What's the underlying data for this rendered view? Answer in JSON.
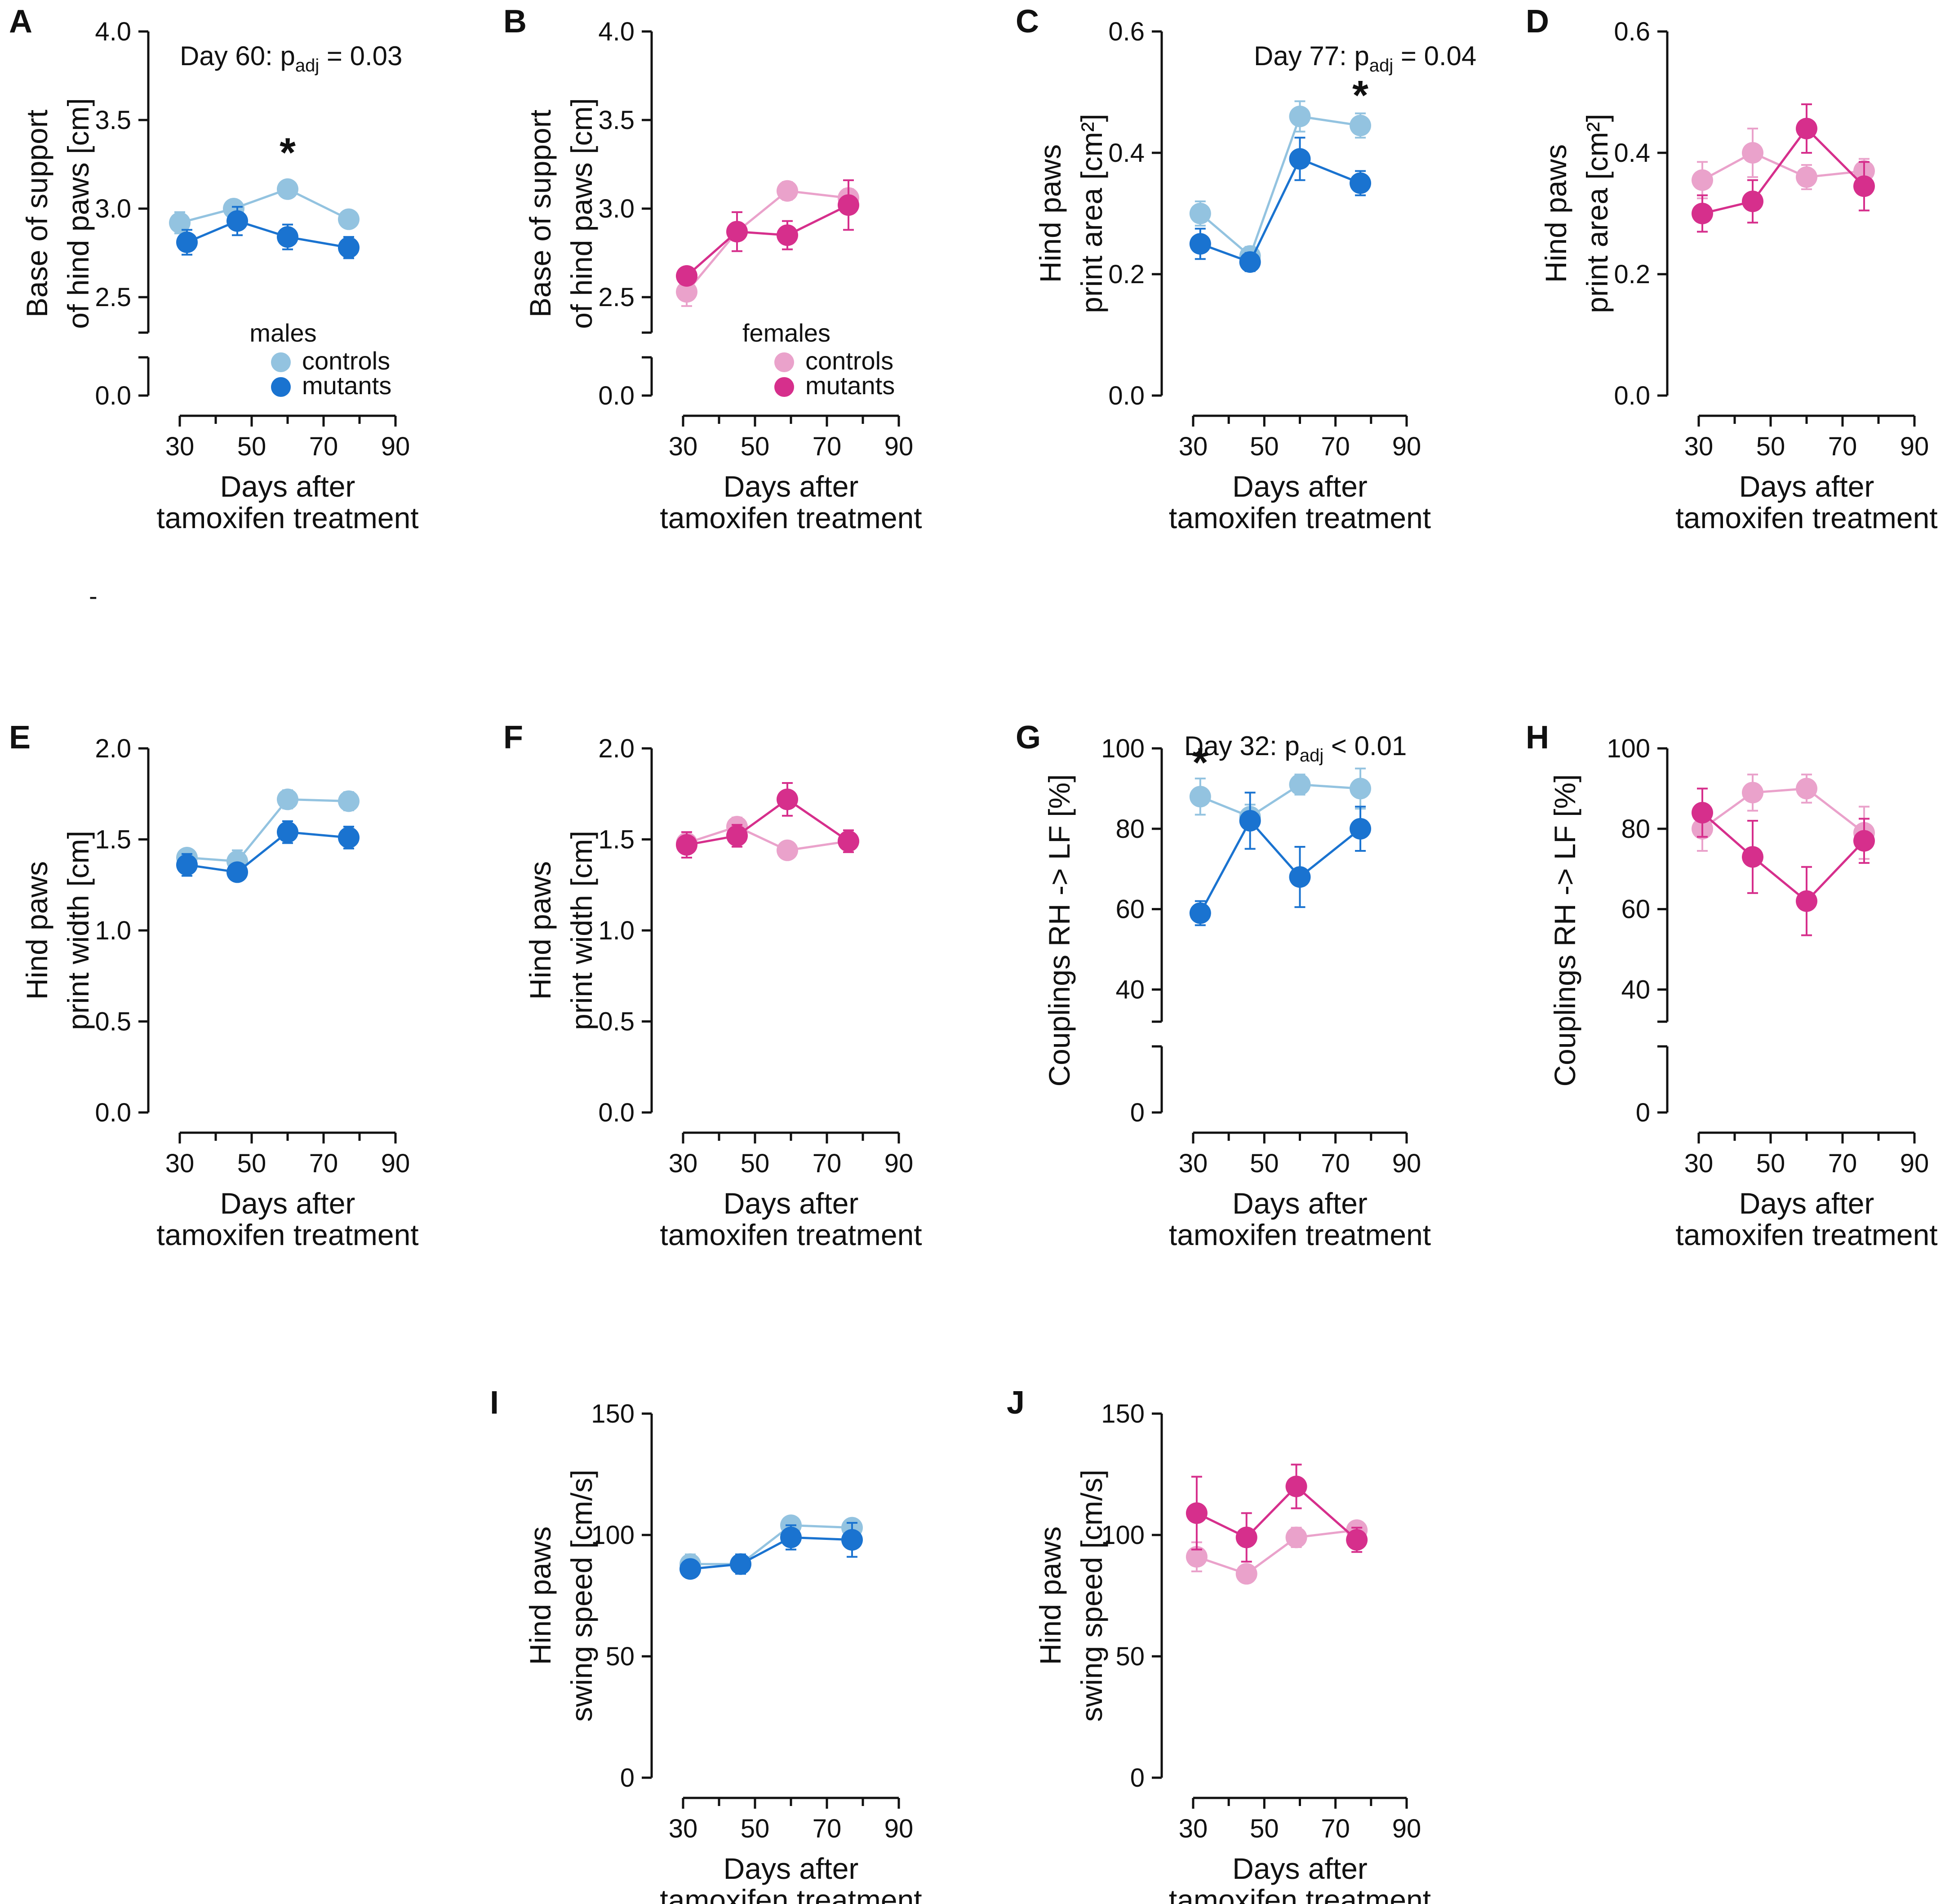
{
  "figure": {
    "xlabel_line1": "Days after",
    "xlabel_line2": "tamoxifen treatment",
    "stray_mark": "-"
  },
  "colors": {
    "male_control": "#93c3e0",
    "male_mutant": "#1a73d0",
    "female_control": "#eaa2cb",
    "female_mutant": "#d62f8c",
    "axis": "#111111"
  },
  "chart_data": [
    {
      "panel": "A",
      "type": "line",
      "title": "",
      "ylabel_lines": [
        "Base of support",
        "of hind paws [cm]"
      ],
      "ylim": [
        2.3,
        4.0
      ],
      "break_zero": true,
      "yticks": [
        2.5,
        3.0,
        3.5,
        4.0
      ],
      "ytick_labels": [
        "2.5",
        "3.0",
        "3.5",
        "4.0"
      ],
      "xlim": [
        30,
        90
      ],
      "xticks": [
        30,
        50,
        70,
        90
      ],
      "xtick_labels": [
        "30",
        "50",
        "70",
        "90"
      ],
      "annotation": {
        "prefix": "Day 60: p",
        "sub": "adj",
        "suffix": " = 0.03"
      },
      "stars": [
        {
          "x": 60,
          "y": 3.35
        }
      ],
      "legend": {
        "title": "males",
        "labels": [
          "controls",
          "mutants"
        ]
      },
      "series": [
        {
          "name": "controls",
          "color_key": "male_control",
          "x": [
            30,
            45,
            60,
            77
          ],
          "values": [
            2.92,
            3.0,
            3.11,
            2.94
          ],
          "err": [
            0.06,
            0.04,
            0.03,
            0.03
          ]
        },
        {
          "name": "mutants",
          "color_key": "male_mutant",
          "x": [
            32,
            46,
            60,
            77
          ],
          "values": [
            2.81,
            2.93,
            2.84,
            2.78
          ],
          "err": [
            0.07,
            0.08,
            0.07,
            0.06
          ]
        }
      ]
    },
    {
      "panel": "B",
      "type": "line",
      "title": "",
      "ylabel_lines": [
        "Base of support",
        "of hind paws [cm]"
      ],
      "ylim": [
        2.3,
        4.0
      ],
      "break_zero": true,
      "yticks": [
        2.5,
        3.0,
        3.5,
        4.0
      ],
      "ytick_labels": [
        "2.5",
        "3.0",
        "3.5",
        "4.0"
      ],
      "xlim": [
        30,
        90
      ],
      "xticks": [
        30,
        50,
        70,
        90
      ],
      "xtick_labels": [
        "30",
        "50",
        "70",
        "90"
      ],
      "legend": {
        "title": "females",
        "labels": [
          "controls",
          "mutants"
        ]
      },
      "series": [
        {
          "name": "controls",
          "color_key": "female_control",
          "x": [
            31,
            45,
            59,
            76
          ],
          "values": [
            2.53,
            2.87,
            3.1,
            3.06
          ],
          "err": [
            0.08,
            0.05,
            0.05,
            0.05
          ]
        },
        {
          "name": "mutants",
          "color_key": "female_mutant",
          "x": [
            31,
            45,
            59,
            76
          ],
          "values": [
            2.62,
            2.87,
            2.85,
            3.02
          ],
          "err": [
            0.04,
            0.11,
            0.08,
            0.14
          ]
        }
      ]
    },
    {
      "panel": "C",
      "type": "line",
      "title": "",
      "ylabel_lines": [
        "Hind paws",
        "print area [cm²]"
      ],
      "ylim": [
        0.0,
        0.6
      ],
      "break_zero": false,
      "yticks": [
        0.0,
        0.2,
        0.4,
        0.6
      ],
      "ytick_labels": [
        "0.0",
        "0.2",
        "0.4",
        "0.6"
      ],
      "xlim": [
        30,
        90
      ],
      "xticks": [
        30,
        50,
        70,
        90
      ],
      "xtick_labels": [
        "30",
        "50",
        "70",
        "90"
      ],
      "annotation": {
        "prefix": "Day 77: p",
        "sub": "adj",
        "suffix": " = 0.04"
      },
      "stars": [
        {
          "x": 77,
          "y": 0.505
        }
      ],
      "series": [
        {
          "name": "controls",
          "color_key": "male_control",
          "x": [
            32,
            46,
            60,
            77
          ],
          "values": [
            0.3,
            0.23,
            0.46,
            0.445
          ],
          "err": [
            0.02,
            0.015,
            0.025,
            0.02
          ]
        },
        {
          "name": "mutants",
          "color_key": "male_mutant",
          "x": [
            32,
            46,
            60,
            77
          ],
          "values": [
            0.25,
            0.22,
            0.39,
            0.35
          ],
          "err": [
            0.025,
            0.015,
            0.035,
            0.02
          ]
        }
      ]
    },
    {
      "panel": "D",
      "type": "line",
      "title": "",
      "ylabel_lines": [
        "Hind paws",
        "print area [cm²]"
      ],
      "ylim": [
        0.0,
        0.6
      ],
      "break_zero": false,
      "yticks": [
        0.0,
        0.2,
        0.4,
        0.6
      ],
      "ytick_labels": [
        "0.0",
        "0.2",
        "0.4",
        "0.6"
      ],
      "xlim": [
        30,
        90
      ],
      "xticks": [
        30,
        50,
        70,
        90
      ],
      "xtick_labels": [
        "30",
        "50",
        "70",
        "90"
      ],
      "series": [
        {
          "name": "controls",
          "color_key": "female_control",
          "x": [
            31,
            45,
            60,
            76
          ],
          "values": [
            0.355,
            0.4,
            0.36,
            0.37
          ],
          "err": [
            0.03,
            0.04,
            0.02,
            0.02
          ]
        },
        {
          "name": "mutants",
          "color_key": "female_mutant",
          "x": [
            31,
            45,
            60,
            76
          ],
          "values": [
            0.3,
            0.32,
            0.44,
            0.345
          ],
          "err": [
            0.03,
            0.035,
            0.04,
            0.04
          ]
        }
      ]
    },
    {
      "panel": "E",
      "type": "line",
      "title": "",
      "ylabel_lines": [
        "Hind paws",
        "print width [cm]"
      ],
      "ylim": [
        0.0,
        2.0
      ],
      "break_zero": false,
      "yticks": [
        0.0,
        0.5,
        1.0,
        1.5,
        2.0
      ],
      "ytick_labels": [
        "0.0",
        "0.5",
        "1.0",
        "1.5",
        "2.0"
      ],
      "xlim": [
        30,
        90
      ],
      "xticks": [
        30,
        50,
        70,
        90
      ],
      "xtick_labels": [
        "30",
        "50",
        "70",
        "90"
      ],
      "series": [
        {
          "name": "controls",
          "color_key": "male_control",
          "x": [
            32,
            46,
            60,
            77
          ],
          "values": [
            1.4,
            1.38,
            1.72,
            1.71
          ],
          "err": [
            0.04,
            0.06,
            0.05,
            0.05
          ]
        },
        {
          "name": "mutants",
          "color_key": "male_mutant",
          "x": [
            32,
            46,
            60,
            77
          ],
          "values": [
            1.36,
            1.32,
            1.54,
            1.51
          ],
          "err": [
            0.06,
            0.04,
            0.06,
            0.06
          ]
        }
      ]
    },
    {
      "panel": "F",
      "type": "line",
      "title": "",
      "ylabel_lines": [
        "Hind paws",
        "print width [cm]"
      ],
      "ylim": [
        0.0,
        2.0
      ],
      "break_zero": false,
      "yticks": [
        0.0,
        0.5,
        1.0,
        1.5,
        2.0
      ],
      "ytick_labels": [
        "0.0",
        "0.5",
        "1.0",
        "1.5",
        "2.0"
      ],
      "xlim": [
        30,
        90
      ],
      "xticks": [
        30,
        50,
        70,
        90
      ],
      "xtick_labels": [
        "30",
        "50",
        "70",
        "90"
      ],
      "series": [
        {
          "name": "controls",
          "color_key": "female_control",
          "x": [
            31,
            45,
            59,
            76
          ],
          "values": [
            1.48,
            1.57,
            1.44,
            1.49
          ],
          "err": [
            0.04,
            0.05,
            0.03,
            0.04
          ]
        },
        {
          "name": "mutants",
          "color_key": "female_mutant",
          "x": [
            31,
            45,
            59,
            76
          ],
          "values": [
            1.47,
            1.52,
            1.72,
            1.49
          ],
          "err": [
            0.07,
            0.06,
            0.09,
            0.06
          ]
        }
      ]
    },
    {
      "panel": "G",
      "type": "line",
      "title": "",
      "ylabel_lines": [
        "Couplings RH -> LF [%]"
      ],
      "ylim": [
        32,
        100
      ],
      "break_zero": true,
      "yticks": [
        40,
        60,
        80,
        100
      ],
      "ytick_labels": [
        "40",
        "60",
        "80",
        "100"
      ],
      "xlim": [
        30,
        90
      ],
      "xticks": [
        30,
        50,
        70,
        90
      ],
      "xtick_labels": [
        "30",
        "50",
        "70",
        "90"
      ],
      "annotation": {
        "prefix": "Day 32: p",
        "sub": "adj",
        "suffix": " < 0.01"
      },
      "stars": [
        {
          "x": 32,
          "y": 98
        }
      ],
      "series": [
        {
          "name": "controls",
          "color_key": "male_control",
          "x": [
            32,
            46,
            60,
            77
          ],
          "values": [
            88,
            83,
            91,
            90
          ],
          "err": [
            4.5,
            3,
            2.5,
            5
          ]
        },
        {
          "name": "mutants",
          "color_key": "male_mutant",
          "x": [
            32,
            46,
            60,
            77
          ],
          "values": [
            59,
            82,
            68,
            80
          ],
          "err": [
            3,
            7,
            7.5,
            5.5
          ]
        }
      ]
    },
    {
      "panel": "H",
      "type": "line",
      "title": "",
      "ylabel_lines": [
        "Couplings RH -> LF [%]"
      ],
      "ylim": [
        32,
        100
      ],
      "break_zero": true,
      "yticks": [
        40,
        60,
        80,
        100
      ],
      "ytick_labels": [
        "40",
        "60",
        "80",
        "100"
      ],
      "xlim": [
        30,
        90
      ],
      "xticks": [
        30,
        50,
        70,
        90
      ],
      "xtick_labels": [
        "30",
        "50",
        "70",
        "90"
      ],
      "series": [
        {
          "name": "controls",
          "color_key": "female_control",
          "x": [
            31,
            45,
            60,
            76
          ],
          "values": [
            80,
            89,
            90,
            79
          ],
          "err": [
            5.5,
            4.5,
            3.5,
            6.5
          ]
        },
        {
          "name": "mutants",
          "color_key": "female_mutant",
          "x": [
            31,
            45,
            60,
            76
          ],
          "values": [
            84,
            73,
            62,
            77
          ],
          "err": [
            6,
            9,
            8.5,
            5.5
          ]
        }
      ]
    },
    {
      "panel": "I",
      "type": "line",
      "title": "",
      "ylabel_lines": [
        "Hind paws",
        "swing speed [cm/s]"
      ],
      "ylim": [
        0,
        150
      ],
      "break_zero": false,
      "yticks": [
        0,
        50,
        100,
        150
      ],
      "ytick_labels": [
        "0",
        "50",
        "100",
        "150"
      ],
      "xlim": [
        30,
        90
      ],
      "xticks": [
        30,
        50,
        70,
        90
      ],
      "xtick_labels": [
        "30",
        "50",
        "70",
        "90"
      ],
      "series": [
        {
          "name": "controls",
          "color_key": "male_control",
          "x": [
            32,
            46,
            60,
            77
          ],
          "values": [
            88,
            88,
            104,
            103
          ],
          "err": [
            4,
            4,
            3,
            3
          ]
        },
        {
          "name": "mutants",
          "color_key": "male_mutant",
          "x": [
            32,
            46,
            60,
            77
          ],
          "values": [
            86,
            88,
            99,
            98
          ],
          "err": [
            3,
            4,
            5,
            7
          ]
        }
      ]
    },
    {
      "panel": "J",
      "type": "line",
      "title": "",
      "ylabel_lines": [
        "Hind paws",
        "swing speed [cm/s]"
      ],
      "ylim": [
        0,
        150
      ],
      "break_zero": false,
      "yticks": [
        0,
        50,
        100,
        150
      ],
      "ytick_labels": [
        "0",
        "50",
        "100",
        "150"
      ],
      "xlim": [
        30,
        90
      ],
      "xticks": [
        30,
        50,
        70,
        90
      ],
      "xtick_labels": [
        "30",
        "50",
        "70",
        "90"
      ],
      "series": [
        {
          "name": "controls",
          "color_key": "female_control",
          "x": [
            31,
            45,
            59,
            76
          ],
          "values": [
            91,
            84,
            99,
            102
          ],
          "err": [
            6,
            3,
            4,
            3
          ]
        },
        {
          "name": "mutants",
          "color_key": "female_mutant",
          "x": [
            31,
            45,
            59,
            76
          ],
          "values": [
            109,
            99,
            120,
            98
          ],
          "err": [
            15,
            10,
            9,
            5
          ]
        }
      ]
    }
  ]
}
